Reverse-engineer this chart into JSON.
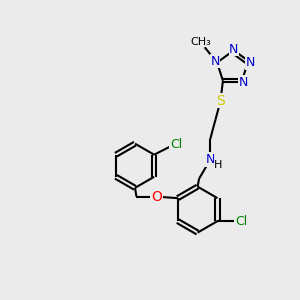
{
  "bg_color": "#ebebeb",
  "bond_color": "#000000",
  "N_color": "#0000cc",
  "S_color": "#cccc00",
  "O_color": "#ff0000",
  "Cl_color": "#008000",
  "line_width": 1.5,
  "font_size": 9,
  "figsize": [
    3.0,
    3.0
  ],
  "dpi": 100,
  "xlim": [
    0,
    10
  ],
  "ylim": [
    0,
    10
  ]
}
